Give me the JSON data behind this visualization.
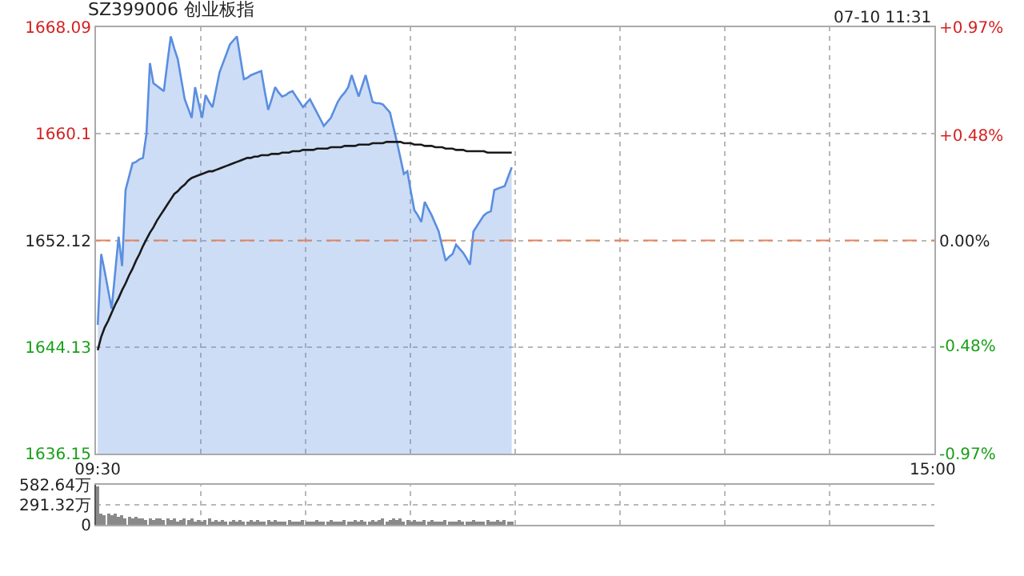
{
  "chart_data": [
    {
      "type": "area",
      "title": "SZ399006 创业板指",
      "annotations": [
        "07-10 11:31"
      ],
      "categories": [
        "09:30",
        null,
        null,
        null,
        null,
        null,
        null,
        null,
        null,
        null,
        null,
        null,
        null,
        null,
        null,
        null,
        null,
        null,
        null,
        null,
        null,
        null,
        null,
        null,
        null,
        null,
        null,
        null,
        null,
        null,
        null,
        null,
        null,
        null,
        null,
        null,
        null,
        null,
        null,
        null,
        null,
        null,
        null,
        null,
        null,
        null,
        null,
        null,
        null,
        null,
        null,
        null,
        null,
        null,
        null,
        null,
        null,
        null,
        null,
        null,
        null,
        null,
        null,
        null,
        null,
        null,
        null,
        null,
        null,
        null,
        null,
        null,
        null,
        null,
        null,
        null,
        null,
        null,
        null,
        null,
        null,
        null,
        null,
        null,
        null,
        null,
        null,
        null,
        null,
        null,
        null,
        null,
        null,
        null,
        null,
        null,
        null,
        null,
        null,
        null,
        null,
        null,
        null,
        null,
        null,
        null,
        null,
        null,
        null,
        null,
        null,
        null,
        null,
        null,
        null,
        null,
        null,
        null,
        null,
        null,
        null,
        null,
        null,
        null,
        null,
        null,
        null,
        null,
        null,
        null,
        null,
        null,
        null,
        null,
        null,
        null,
        null,
        null,
        null,
        null,
        null,
        null,
        null,
        null,
        null,
        null,
        null,
        null,
        null,
        null,
        null,
        null,
        null,
        null,
        null,
        null,
        null,
        null,
        null,
        null,
        null,
        null,
        null,
        null,
        null,
        null,
        null,
        null,
        null,
        null,
        null,
        null,
        null,
        null,
        null,
        null,
        null,
        null,
        null,
        null,
        null,
        null,
        null,
        null,
        null,
        null,
        null,
        null,
        null,
        null,
        null,
        null,
        null,
        null,
        null,
        null,
        null,
        null,
        null,
        null,
        null,
        null,
        null,
        null,
        null,
        null,
        null,
        null,
        null,
        null,
        null,
        null,
        null,
        null,
        null,
        null,
        null,
        null,
        null,
        null,
        null,
        null,
        null,
        null,
        null,
        null,
        null,
        null,
        null,
        null,
        null,
        null,
        null,
        null,
        null,
        null,
        null,
        null,
        null,
        null,
        "15:00"
      ],
      "ylim": [
        1636.15,
        1668.09
      ],
      "yticks": [
        1636.15,
        1644.13,
        1652.12,
        1660.1,
        1668.09
      ],
      "y2lim": [
        -0.97,
        0.97
      ],
      "y2ticks": [
        {
          "value": -0.97,
          "label": "-0.97%"
        },
        {
          "value": -0.48,
          "label": "-0.48%"
        },
        {
          "value": 0,
          "label": "0.00%"
        },
        {
          "value": 0.48,
          "label": "+0.48%"
        },
        {
          "value": 0.97,
          "label": "+0.97%"
        }
      ],
      "grid": true,
      "ref_lines": [
        {
          "axis": "y",
          "value": 1652.12,
          "color": "#e8845a",
          "line_style": "dashed"
        }
      ],
      "series": [
        {
          "type": "area",
          "color": "#5a8ee0",
          "values": [
            1645.8,
            1651.1,
            1649.8,
            1648.4,
            1647.0,
            1649.7,
            1652.4,
            1650.2,
            1655.9,
            1656.9,
            1657.9,
            1658.0,
            1658.2,
            1658.3,
            1660.1,
            1665.4,
            1663.9,
            1663.7,
            1663.5,
            1663.3,
            1665.4,
            1667.4,
            1666.5,
            1665.7,
            1664.2,
            1662.7,
            1662.0,
            1661.3,
            1663.6,
            1662.4,
            1661.3,
            1663.0,
            1662.5,
            1662.1,
            1663.4,
            1664.7,
            1665.4,
            1666.1,
            1666.8,
            1667.1,
            1667.4,
            1665.8,
            1664.2,
            1664.3,
            1664.5,
            1664.6,
            1664.7,
            1664.8,
            1663.3,
            1661.9,
            1662.7,
            1663.6,
            1663.2,
            1662.9,
            1663.0,
            1663.2,
            1663.3,
            1662.9,
            1662.5,
            1662.1,
            1662.4,
            1662.7,
            1662.2,
            1661.7,
            1661.2,
            1660.7,
            1661.0,
            1661.3,
            1661.9,
            1662.5,
            1662.9,
            1663.2,
            1663.6,
            1664.5,
            1663.7,
            1662.9,
            1663.7,
            1664.5,
            1663.5,
            1662.5,
            1662.4,
            1662.4,
            1662.3,
            1662.0,
            1661.7,
            1660.6,
            1659.5,
            1658.3,
            1657.1,
            1657.3,
            1655.8,
            1654.4,
            1654.0,
            1653.5,
            1655.0,
            1654.5,
            1654.0,
            1653.4,
            1652.8,
            1651.7,
            1650.6,
            1650.9,
            1651.1,
            1651.8,
            1651.5,
            1651.2,
            1650.8,
            1650.3,
            1652.8,
            1653.2,
            1653.6,
            1654.0,
            1654.2,
            1654.3,
            1655.9,
            1656.0,
            1656.1,
            1656.2,
            1656.9,
            1657.6,
            null,
            null,
            null,
            null,
            null,
            null,
            null,
            null,
            null,
            null,
            null,
            null,
            null,
            null,
            null,
            null,
            null,
            null,
            null,
            null,
            null,
            null,
            null,
            null,
            null,
            null,
            null,
            null,
            null,
            null,
            null,
            null,
            null,
            null,
            null,
            null,
            null,
            null,
            null,
            null,
            null,
            null,
            null,
            null,
            null,
            null,
            null,
            null,
            null,
            null,
            null,
            null,
            null,
            null,
            null,
            null,
            null,
            null,
            null,
            null,
            null,
            null,
            null,
            null,
            null,
            null,
            null,
            null,
            null,
            null,
            null,
            null,
            null,
            null,
            null,
            null,
            null,
            null,
            null,
            null,
            null,
            null,
            null,
            null,
            null,
            null,
            null,
            null,
            null,
            null,
            null,
            null,
            null,
            null,
            null,
            null,
            null,
            null,
            null,
            null,
            null,
            null,
            null,
            null,
            null,
            null,
            null,
            null,
            null,
            null,
            null,
            null,
            null,
            null,
            null,
            null,
            null,
            null,
            null,
            null,
            null
          ]
        },
        {
          "type": "line",
          "color": "#1a1a1a",
          "values": [
            1643.9,
            1644.9,
            1645.6,
            1646.1,
            1646.7,
            1647.3,
            1647.8,
            1648.4,
            1648.9,
            1649.5,
            1650.0,
            1650.6,
            1651.1,
            1651.7,
            1652.2,
            1652.7,
            1653.1,
            1653.6,
            1654.0,
            1654.4,
            1654.8,
            1655.2,
            1655.6,
            1655.8,
            1656.1,
            1656.3,
            1656.6,
            1656.8,
            1656.9,
            1657.0,
            1657.1,
            1657.2,
            1657.3,
            1657.3,
            1657.4,
            1657.5,
            1657.6,
            1657.7,
            1657.8,
            1657.9,
            1658.0,
            1658.1,
            1658.2,
            1658.3,
            1658.3,
            1658.4,
            1658.4,
            1658.5,
            1658.5,
            1658.5,
            1658.6,
            1658.6,
            1658.6,
            1658.7,
            1658.7,
            1658.7,
            1658.8,
            1658.8,
            1658.8,
            1658.9,
            1658.9,
            1658.9,
            1658.9,
            1659.0,
            1659.0,
            1659.0,
            1659.0,
            1659.1,
            1659.1,
            1659.1,
            1659.1,
            1659.2,
            1659.2,
            1659.2,
            1659.2,
            1659.3,
            1659.3,
            1659.3,
            1659.3,
            1659.4,
            1659.4,
            1659.4,
            1659.4,
            1659.5,
            1659.5,
            1659.5,
            1659.5,
            1659.5,
            1659.4,
            1659.4,
            1659.4,
            1659.3,
            1659.3,
            1659.3,
            1659.2,
            1659.2,
            1659.2,
            1659.1,
            1659.1,
            1659.1,
            1659.0,
            1659.0,
            1659.0,
            1658.9,
            1658.9,
            1658.9,
            1658.8,
            1658.8,
            1658.8,
            1658.8,
            1658.8,
            1658.8,
            1658.7,
            1658.7,
            1658.7,
            1658.7,
            1658.7,
            1658.7,
            1658.7,
            1658.7,
            null,
            null,
            null,
            null,
            null,
            null,
            null,
            null,
            null,
            null,
            null,
            null,
            null,
            null,
            null,
            null,
            null,
            null,
            null,
            null,
            null,
            null,
            null,
            null,
            null,
            null,
            null,
            null,
            null,
            null,
            null,
            null,
            null,
            null,
            null,
            null,
            null,
            null,
            null,
            null,
            null,
            null,
            null,
            null,
            null,
            null,
            null,
            null,
            null,
            null,
            null,
            null,
            null,
            null,
            null,
            null,
            null,
            null,
            null,
            null,
            null,
            null,
            null,
            null,
            null,
            null,
            null,
            null,
            null,
            null,
            null,
            null,
            null,
            null,
            null,
            null,
            null,
            null,
            null,
            null,
            null,
            null,
            null,
            null,
            null,
            null,
            null,
            null,
            null,
            null,
            null,
            null,
            null,
            null,
            null,
            null,
            null,
            null,
            null,
            null,
            null,
            null,
            null,
            null,
            null,
            null,
            null,
            null,
            null,
            null,
            null,
            null,
            null,
            null,
            null,
            null,
            null,
            null,
            null,
            null,
            null
          ]
        }
      ]
    },
    {
      "type": "bar",
      "categories": [
        null,
        null,
        null,
        null,
        null,
        null,
        null,
        null,
        null,
        null,
        null,
        null,
        null,
        null,
        null,
        null,
        null,
        null,
        null,
        null,
        null,
        null,
        null,
        null,
        null,
        null,
        null,
        null,
        null,
        null,
        null,
        null,
        null,
        null,
        null,
        null,
        null,
        null,
        null,
        null,
        null,
        null,
        null,
        null,
        null,
        null,
        null,
        null,
        null,
        null,
        null,
        null,
        null,
        null,
        null,
        null,
        null,
        null,
        null,
        null,
        null,
        null,
        null,
        null,
        null,
        null,
        null,
        null,
        null,
        null,
        null,
        null,
        null,
        null,
        null,
        null,
        null,
        null,
        null,
        null,
        null,
        null,
        null,
        null,
        null,
        null,
        null,
        null,
        null,
        null,
        null,
        null,
        null,
        null,
        null,
        null,
        null,
        null,
        null,
        null,
        null,
        null,
        null,
        null,
        null,
        null,
        null,
        null,
        null,
        null,
        null,
        null,
        null,
        null,
        null,
        null,
        null,
        null,
        null,
        null,
        null,
        null,
        null,
        null,
        null,
        null,
        null,
        null,
        null,
        null,
        null,
        null,
        null,
        null,
        null,
        null,
        null,
        null,
        null,
        null,
        null,
        null,
        null,
        null,
        null,
        null,
        null,
        null,
        null,
        null,
        null,
        null,
        null,
        null,
        null,
        null,
        null,
        null,
        null,
        null,
        null,
        null,
        null,
        null,
        null,
        null,
        null,
        null,
        null,
        null,
        null,
        null,
        null,
        null,
        null,
        null,
        null,
        null,
        null,
        null,
        null,
        null,
        null,
        null,
        null,
        null,
        null,
        null,
        null,
        null,
        null,
        null,
        null,
        null,
        null,
        null,
        null,
        null,
        null,
        null,
        null,
        null,
        null,
        null,
        null,
        null,
        null,
        null,
        null,
        null,
        null,
        null,
        null,
        null,
        null,
        null,
        null,
        null,
        null,
        null,
        null,
        null,
        null,
        null,
        null,
        null,
        null,
        null,
        null,
        null,
        null,
        null,
        null,
        null,
        null,
        null,
        null,
        null,
        null,
        null,
        null
      ],
      "ylim": [
        0,
        582.64
      ],
      "yticks": [
        0,
        {
          "value": 291.32,
          "label": "291.32万"
        },
        {
          "value": 582.64,
          "label": "582.64万"
        }
      ],
      "tick_labels": "y",
      "grid": true,
      "series": [
        {
          "color": "#8a8a8a",
          "values": [
            560,
            170,
            140,
            160,
            130,
            150,
            110,
            130,
            100,
            120,
            90,
            110,
            80,
            100,
            70,
            90,
            60,
            80,
            100,
            70,
            90,
            60,
            80,
            50,
            70,
            90,
            60,
            80,
            50,
            70,
            40,
            60,
            80,
            50,
            70,
            40,
            60,
            30,
            50,
            70,
            40,
            60,
            30,
            50,
            70,
            40,
            60,
            30,
            50,
            70,
            40,
            60,
            30,
            50,
            40,
            60,
            30,
            50,
            40,
            60,
            30,
            50,
            40,
            60,
            30,
            50,
            40,
            60,
            30,
            50,
            40,
            60,
            30,
            50,
            70,
            40,
            60,
            30,
            50,
            70,
            40,
            60,
            80,
            50,
            70,
            90,
            60,
            80,
            50,
            70,
            40,
            60,
            30,
            50,
            70,
            40,
            60,
            30,
            50,
            40,
            60,
            30,
            50,
            40,
            60,
            30,
            50,
            40,
            60,
            30,
            50,
            40,
            60,
            30,
            50,
            70,
            40,
            60,
            30,
            50,
            null,
            null,
            null,
            null,
            null,
            null,
            null,
            null,
            null,
            null,
            null,
            null,
            null,
            null,
            null,
            null,
            null,
            null,
            null,
            null,
            null,
            null,
            null,
            null,
            null,
            null,
            null,
            null,
            null,
            null,
            null,
            null,
            null,
            null,
            null,
            null,
            null,
            null,
            null,
            null,
            null,
            null,
            null,
            null,
            null,
            null,
            null,
            null,
            null,
            null,
            null,
            null,
            null,
            null,
            null,
            null,
            null,
            null,
            null,
            null,
            null,
            null,
            null,
            null,
            null,
            null,
            null,
            null,
            null,
            null,
            null,
            null,
            null,
            null,
            null,
            null,
            null,
            null,
            null,
            null,
            null,
            null,
            null,
            null,
            null,
            null,
            null,
            null,
            null,
            null,
            null,
            null,
            null,
            null,
            null,
            null,
            null,
            null,
            null,
            null,
            null,
            null,
            null,
            null,
            null,
            null,
            null,
            null,
            null,
            null,
            null,
            null,
            null,
            null,
            null,
            null,
            null,
            null,
            null,
            null,
            null
          ]
        }
      ]
    }
  ]
}
